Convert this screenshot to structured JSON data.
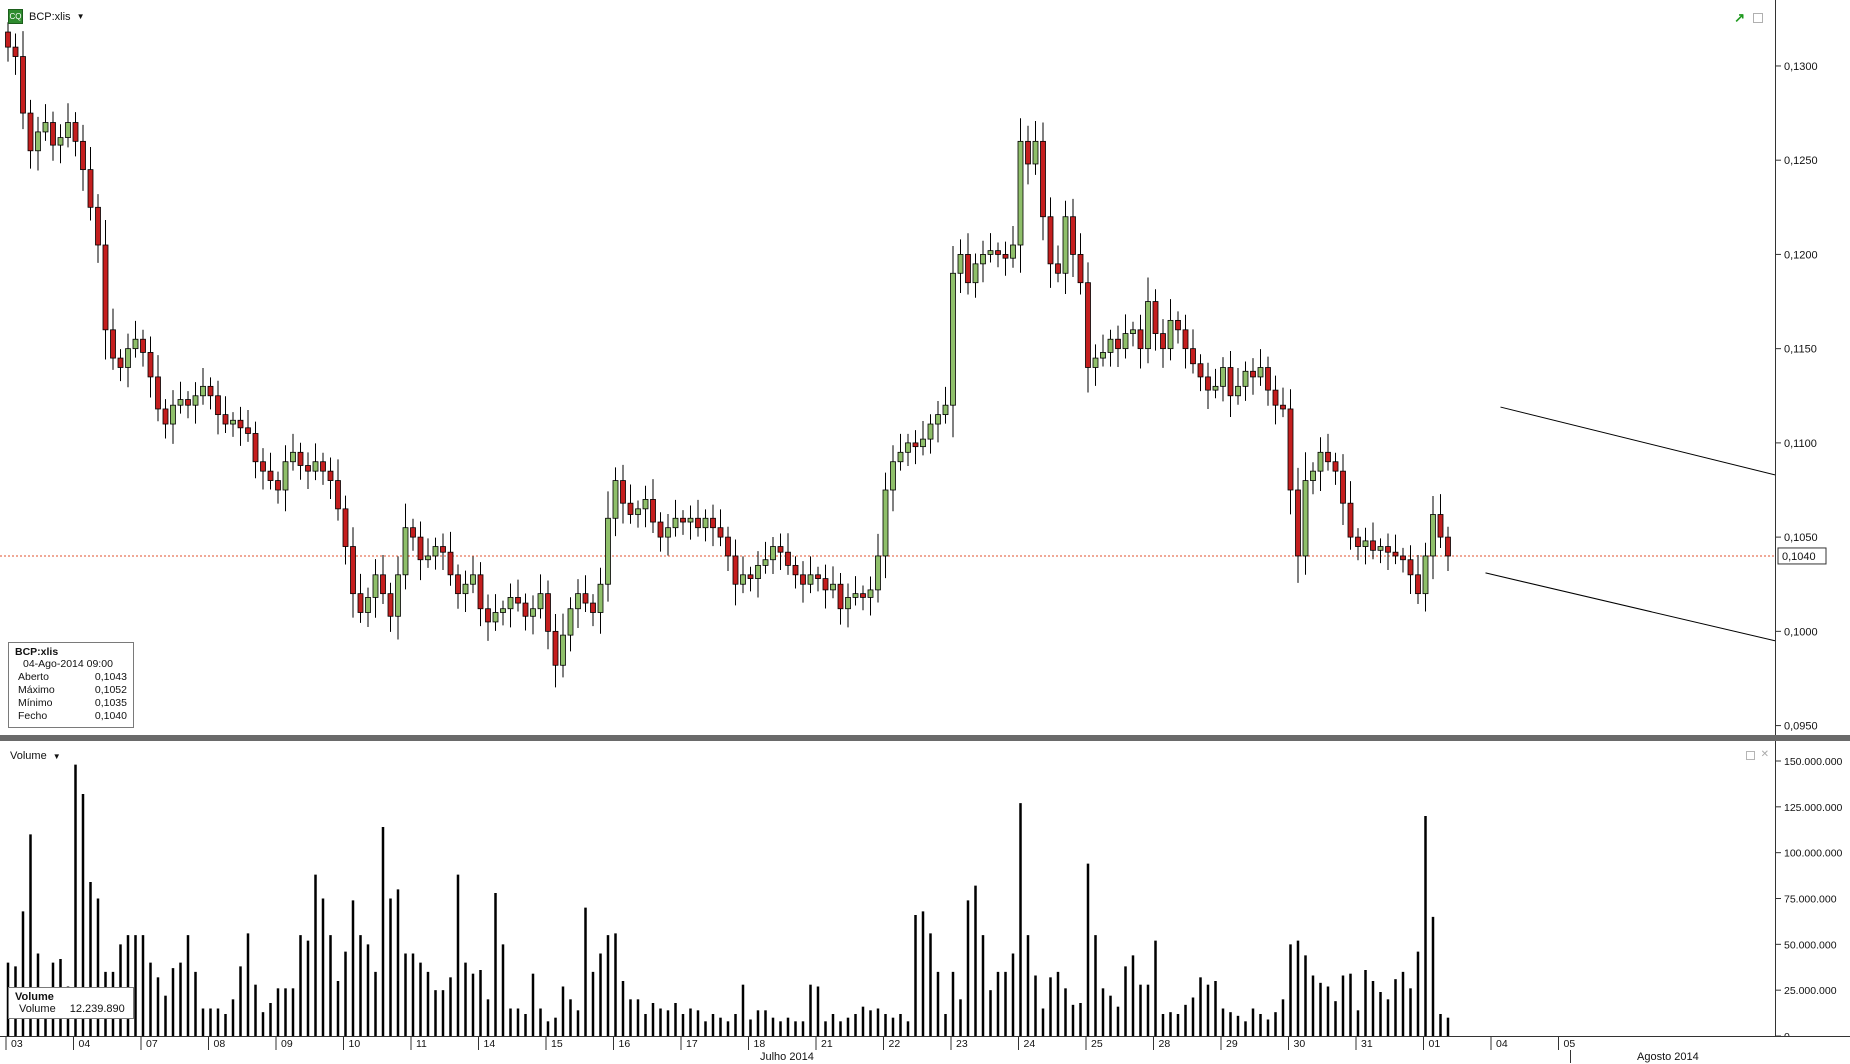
{
  "symbol": "BCP:xlis",
  "colors": {
    "up": "#8fbf6a",
    "down": "#c41e1e",
    "line": "#000000",
    "last_line": "#e0522e"
  },
  "price_panel": {
    "axis_ticks": [
      "0,1300",
      "0,1250",
      "0,1200",
      "0,1150",
      "0,1100",
      "0,1050",
      "0,1000",
      "0,0950"
    ],
    "last_price_label": "0,1040",
    "info": {
      "title": "BCP:xlis",
      "date": "04-Ago-2014 09:00",
      "rows": [
        {
          "label": "Aberto",
          "value": "0,1043"
        },
        {
          "label": "Máximo",
          "value": "0,1052"
        },
        {
          "label": "Mínimo",
          "value": "0,1035"
        },
        {
          "label": "Fecho",
          "value": "0,1040"
        }
      ]
    }
  },
  "volume_panel": {
    "title": "Volume",
    "axis_ticks": [
      "150.000.000",
      "125.000.000",
      "100.000.000",
      "75.000.000",
      "50.000.000",
      "25.000.000",
      "0"
    ],
    "info": {
      "title": "Volume",
      "label": "Volume",
      "value": "12.239.890"
    }
  },
  "x_axis": {
    "day_labels": [
      "03",
      "04",
      "07",
      "08",
      "09",
      "10",
      "11",
      "14",
      "15",
      "16",
      "17",
      "18",
      "21",
      "22",
      "23",
      "24",
      "25",
      "28",
      "29",
      "30",
      "31",
      "01",
      "04",
      "05"
    ],
    "months": [
      "Julho 2014",
      "Agosto 2014"
    ]
  },
  "chart_data": {
    "type": "candlestick",
    "interval": "hourly",
    "y_range": [
      0.0945,
      0.1335
    ],
    "volume_range": [
      0,
      150000000
    ],
    "last_price": 0.104,
    "days": [
      "03",
      "04",
      "07",
      "08",
      "09",
      "10",
      "11",
      "14",
      "15",
      "16",
      "17",
      "18",
      "21",
      "22",
      "23",
      "24",
      "25",
      "28",
      "29",
      "30",
      "31",
      "01",
      "04"
    ],
    "bars_per_day": 9,
    "closes": [
      0.131,
      0.1305,
      0.1275,
      0.1255,
      0.1265,
      0.127,
      0.1258,
      0.1262,
      0.127,
      0.126,
      0.1245,
      0.1225,
      0.1205,
      0.116,
      0.1145,
      0.114,
      0.115,
      0.1155,
      0.1148,
      0.1135,
      0.1118,
      0.111,
      0.112,
      0.1123,
      0.112,
      0.1125,
      0.113,
      0.1125,
      0.1115,
      0.111,
      0.1112,
      0.1108,
      0.1105,
      0.109,
      0.1085,
      0.108,
      0.1075,
      0.109,
      0.1095,
      0.1088,
      0.1085,
      0.109,
      0.1085,
      0.108,
      0.1065,
      0.1045,
      0.102,
      0.101,
      0.1018,
      0.103,
      0.102,
      0.1008,
      0.103,
      0.1055,
      0.105,
      0.1038,
      0.104,
      0.1045,
      0.1042,
      0.103,
      0.102,
      0.1025,
      0.103,
      0.1012,
      0.1005,
      0.101,
      0.1012,
      0.1018,
      0.1015,
      0.1008,
      0.1012,
      0.102,
      0.1,
      0.0982,
      0.0998,
      0.1012,
      0.102,
      0.1015,
      0.101,
      0.1025,
      0.106,
      0.108,
      0.1068,
      0.1062,
      0.1065,
      0.107,
      0.1058,
      0.105,
      0.1055,
      0.106,
      0.1058,
      0.106,
      0.1055,
      0.106,
      0.1055,
      0.105,
      0.104,
      0.1025,
      0.103,
      0.1028,
      0.1035,
      0.1038,
      0.1045,
      0.1042,
      0.1035,
      0.103,
      0.1025,
      0.103,
      0.1028,
      0.1022,
      0.1025,
      0.1012,
      0.1018,
      0.102,
      0.1018,
      0.1022,
      0.104,
      0.1075,
      0.109,
      0.1095,
      0.11,
      0.1098,
      0.1102,
      0.111,
      0.1115,
      0.112,
      0.119,
      0.12,
      0.1185,
      0.1195,
      0.12,
      0.1202,
      0.12,
      0.1198,
      0.1205,
      0.126,
      0.1248,
      0.126,
      0.122,
      0.1195,
      0.119,
      0.122,
      0.12,
      0.1185,
      0.114,
      0.1145,
      0.1148,
      0.1155,
      0.115,
      0.1158,
      0.116,
      0.115,
      0.1175,
      0.1158,
      0.115,
      0.1165,
      0.116,
      0.115,
      0.1142,
      0.1135,
      0.1128,
      0.113,
      0.114,
      0.1125,
      0.113,
      0.1138,
      0.1135,
      0.114,
      0.1128,
      0.112,
      0.1118,
      0.1075,
      0.104,
      0.108,
      0.1085,
      0.1095,
      0.109,
      0.1085,
      0.1068,
      0.105,
      0.1045,
      0.1048,
      0.1043,
      0.1045,
      0.1042,
      0.104,
      0.1038,
      0.103,
      0.102,
      0.104,
      0.1062,
      0.105,
      0.104
    ],
    "volumes": [
      40,
      38,
      68,
      110,
      45,
      12,
      40,
      42,
      27,
      148,
      132,
      84,
      75,
      35,
      35,
      50,
      55,
      55,
      55,
      40,
      32,
      22,
      37,
      40,
      55,
      35,
      15,
      15,
      15,
      12,
      20,
      38,
      56,
      28,
      13,
      18,
      26,
      26,
      26,
      55,
      52,
      88,
      75,
      55,
      30,
      46,
      74,
      55,
      50,
      35,
      114,
      75,
      80,
      45,
      45,
      40,
      35,
      25,
      25,
      32,
      88,
      40,
      34,
      36,
      20,
      78,
      50,
      15,
      15,
      12,
      34,
      15,
      8,
      10,
      27,
      20,
      14,
      70,
      35,
      45,
      55,
      56,
      30,
      20,
      20,
      12,
      18,
      15,
      14,
      18,
      12,
      15,
      14,
      8,
      12,
      10,
      8,
      12,
      28,
      9,
      14,
      14,
      10,
      8,
      10,
      8,
      8,
      28,
      27,
      8,
      12,
      8,
      10,
      12,
      16,
      14,
      15,
      12,
      10,
      12,
      8,
      66,
      68,
      56,
      35,
      12,
      35,
      20,
      74,
      82,
      55,
      25,
      35,
      35,
      45,
      127,
      55,
      33,
      15,
      32,
      35,
      26,
      17,
      18,
      94,
      55,
      26,
      22,
      16,
      38,
      44,
      28,
      28,
      52,
      12,
      13,
      12,
      17,
      21,
      32,
      28,
      30,
      15,
      13,
      11,
      8,
      15,
      12,
      9,
      13,
      20,
      50,
      52,
      44,
      33,
      29,
      27,
      19,
      33,
      34,
      14,
      36,
      30,
      24,
      20,
      31,
      35,
      26,
      46,
      120,
      65,
      12,
      10
    ]
  }
}
